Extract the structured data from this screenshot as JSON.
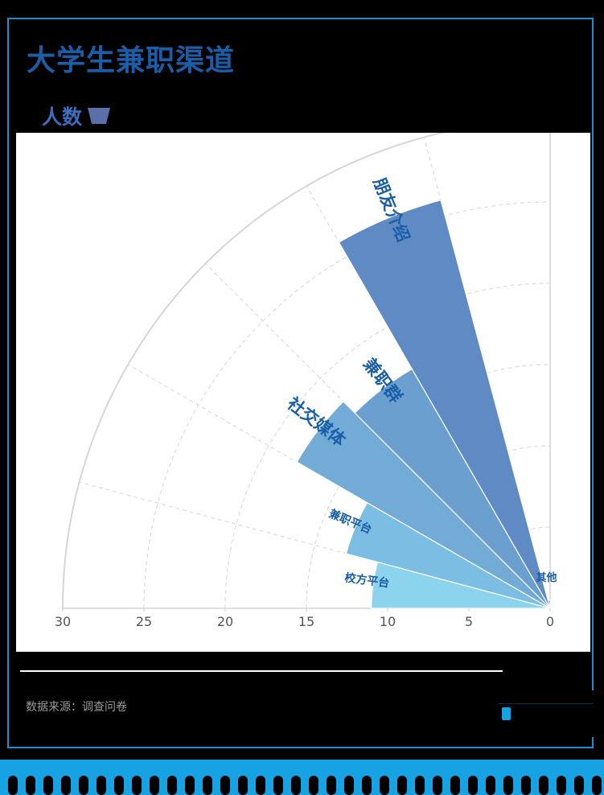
{
  "title": "大学生兼职渠道",
  "legend": {
    "label": "人数",
    "color": "#5b6fa8"
  },
  "source": "数据来源：调查问卷",
  "colors": {
    "frame": "#1a8ed0",
    "title": "#1a5ea8",
    "label": "#1a5ea8",
    "grid": "#d8d8d8",
    "band": "#16a2e3"
  },
  "chart_data": {
    "type": "polar-bar",
    "radial_axis": {
      "min": 0,
      "max": 30,
      "ticks": [
        "30",
        "25",
        "20",
        "15",
        "10",
        "5",
        "0"
      ]
    },
    "angular_span_degrees": 90,
    "categories": [
      "校方平台",
      "兼职平台",
      "社交媒体",
      "兼职群",
      "朋友介绍",
      "其他"
    ],
    "values": [
      11,
      13,
      18,
      17,
      26,
      0.5
    ],
    "slice_colors": [
      "#8cd3ee",
      "#7cbde3",
      "#72abd6",
      "#6b9fd0",
      "#5f8ac4",
      "#5a7fbd"
    ],
    "grid": true
  }
}
